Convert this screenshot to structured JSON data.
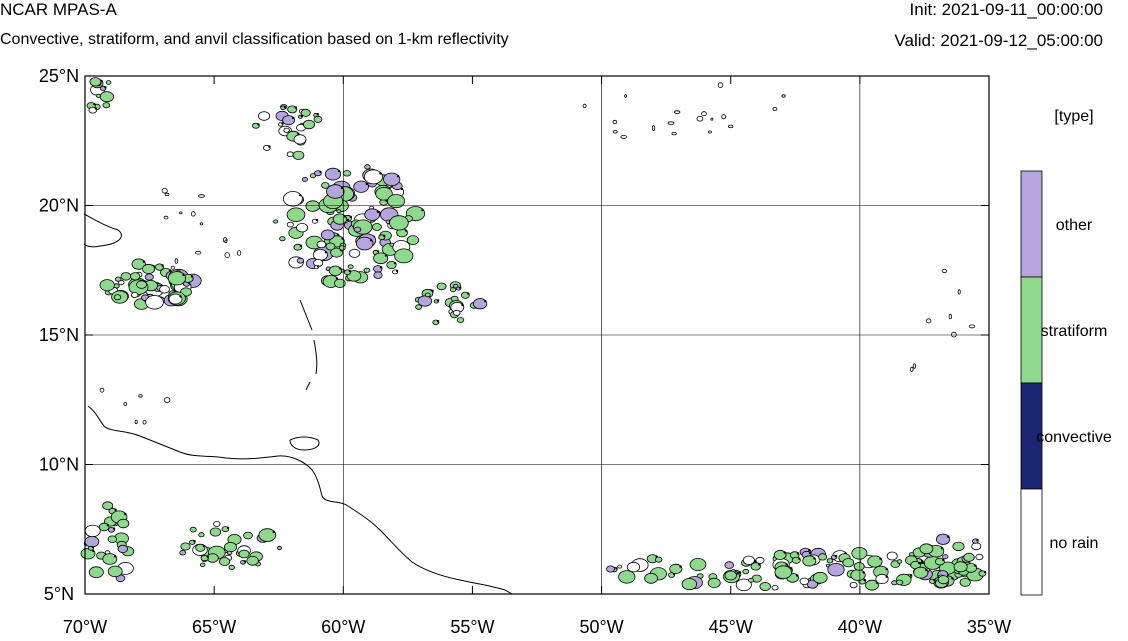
{
  "header": {
    "title": "NCAR MPAS-A",
    "subtitle": "Convective, stratiform, and anvil classification based on 1-km reflectivity",
    "init": "Init: 2021-09-11_00:00:00",
    "valid": "Valid: 2021-09-12_05:00:00"
  },
  "map": {
    "lon_range": [
      -70,
      -35
    ],
    "lat_range": [
      5,
      25
    ],
    "lon_ticks": [
      {
        "value": -70,
        "label": "70°W"
      },
      {
        "value": -65,
        "label": "65°W"
      },
      {
        "value": -60,
        "label": "60°W"
      },
      {
        "value": -55,
        "label": "55°W"
      },
      {
        "value": -50,
        "label": "50°W"
      },
      {
        "value": -45,
        "label": "45°W"
      },
      {
        "value": -40,
        "label": "40°W"
      },
      {
        "value": -35,
        "label": "35°W"
      }
    ],
    "lat_ticks": [
      {
        "value": 25,
        "label": "25°N"
      },
      {
        "value": 20,
        "label": "20°N"
      },
      {
        "value": 15,
        "label": "15°N"
      },
      {
        "value": 10,
        "label": "10°N"
      },
      {
        "value": 5,
        "label": "5°N"
      }
    ],
    "grid_lon": [
      -60,
      -50,
      -40
    ],
    "grid_lat": [
      10,
      15,
      20
    ],
    "colors": {
      "stratiform": "#8fd98f",
      "convective": "#1a2672",
      "other": "#b4a6dc",
      "no_rain": "#ffffff",
      "coast": "#000000",
      "grid": "#000000"
    }
  },
  "legend": {
    "title": "[type]",
    "categories": [
      {
        "label": "other",
        "color": "#b4a6dc"
      },
      {
        "label": "stratiform",
        "color": "#8fd98f"
      },
      {
        "label": "convective",
        "color": "#1a2672"
      },
      {
        "label": "no rain",
        "color": "#ffffff"
      }
    ]
  }
}
